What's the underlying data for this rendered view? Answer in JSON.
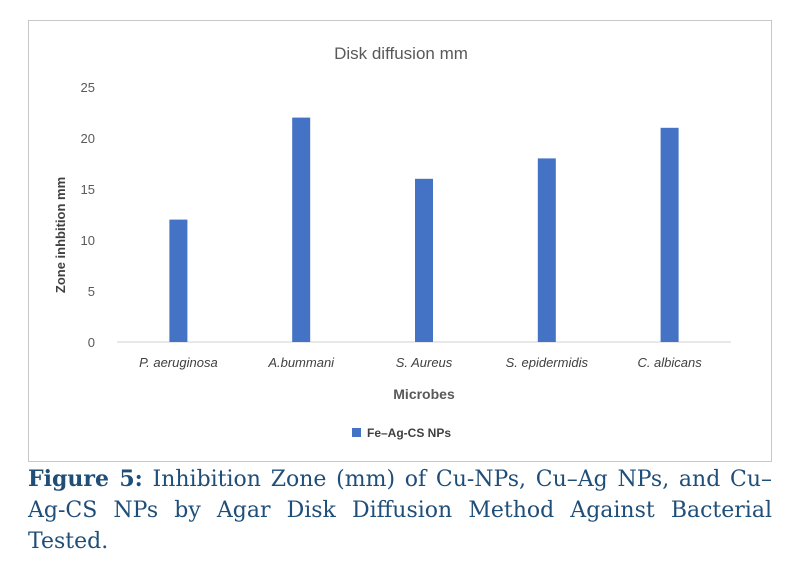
{
  "chart_data": {
    "type": "bar",
    "title": "Disk diffusion mm",
    "xlabel": "Microbes",
    "ylabel": "Zone inhbition mm",
    "categories": [
      "P. aeruginosa",
      "A.bummani",
      "S. Aureus",
      "S. epidermidis",
      "C. albicans"
    ],
    "series": [
      {
        "name": "Fe–Ag-CS NPs",
        "values": [
          12,
          22,
          16,
          18,
          21
        ],
        "color": "#4472c4"
      }
    ],
    "ylim": [
      0,
      25
    ],
    "yticks": [
      0,
      5,
      10,
      15,
      20,
      25
    ],
    "grid": false,
    "legend_position": "bottom"
  },
  "caption": {
    "label": "Figure 5:",
    "text": "Inhibition Zone (mm) of Cu-NPs, Cu–Ag NPs, and Cu–Ag-CS NPs by Agar Disk Diffusion Method Against Bacterial Tested."
  }
}
